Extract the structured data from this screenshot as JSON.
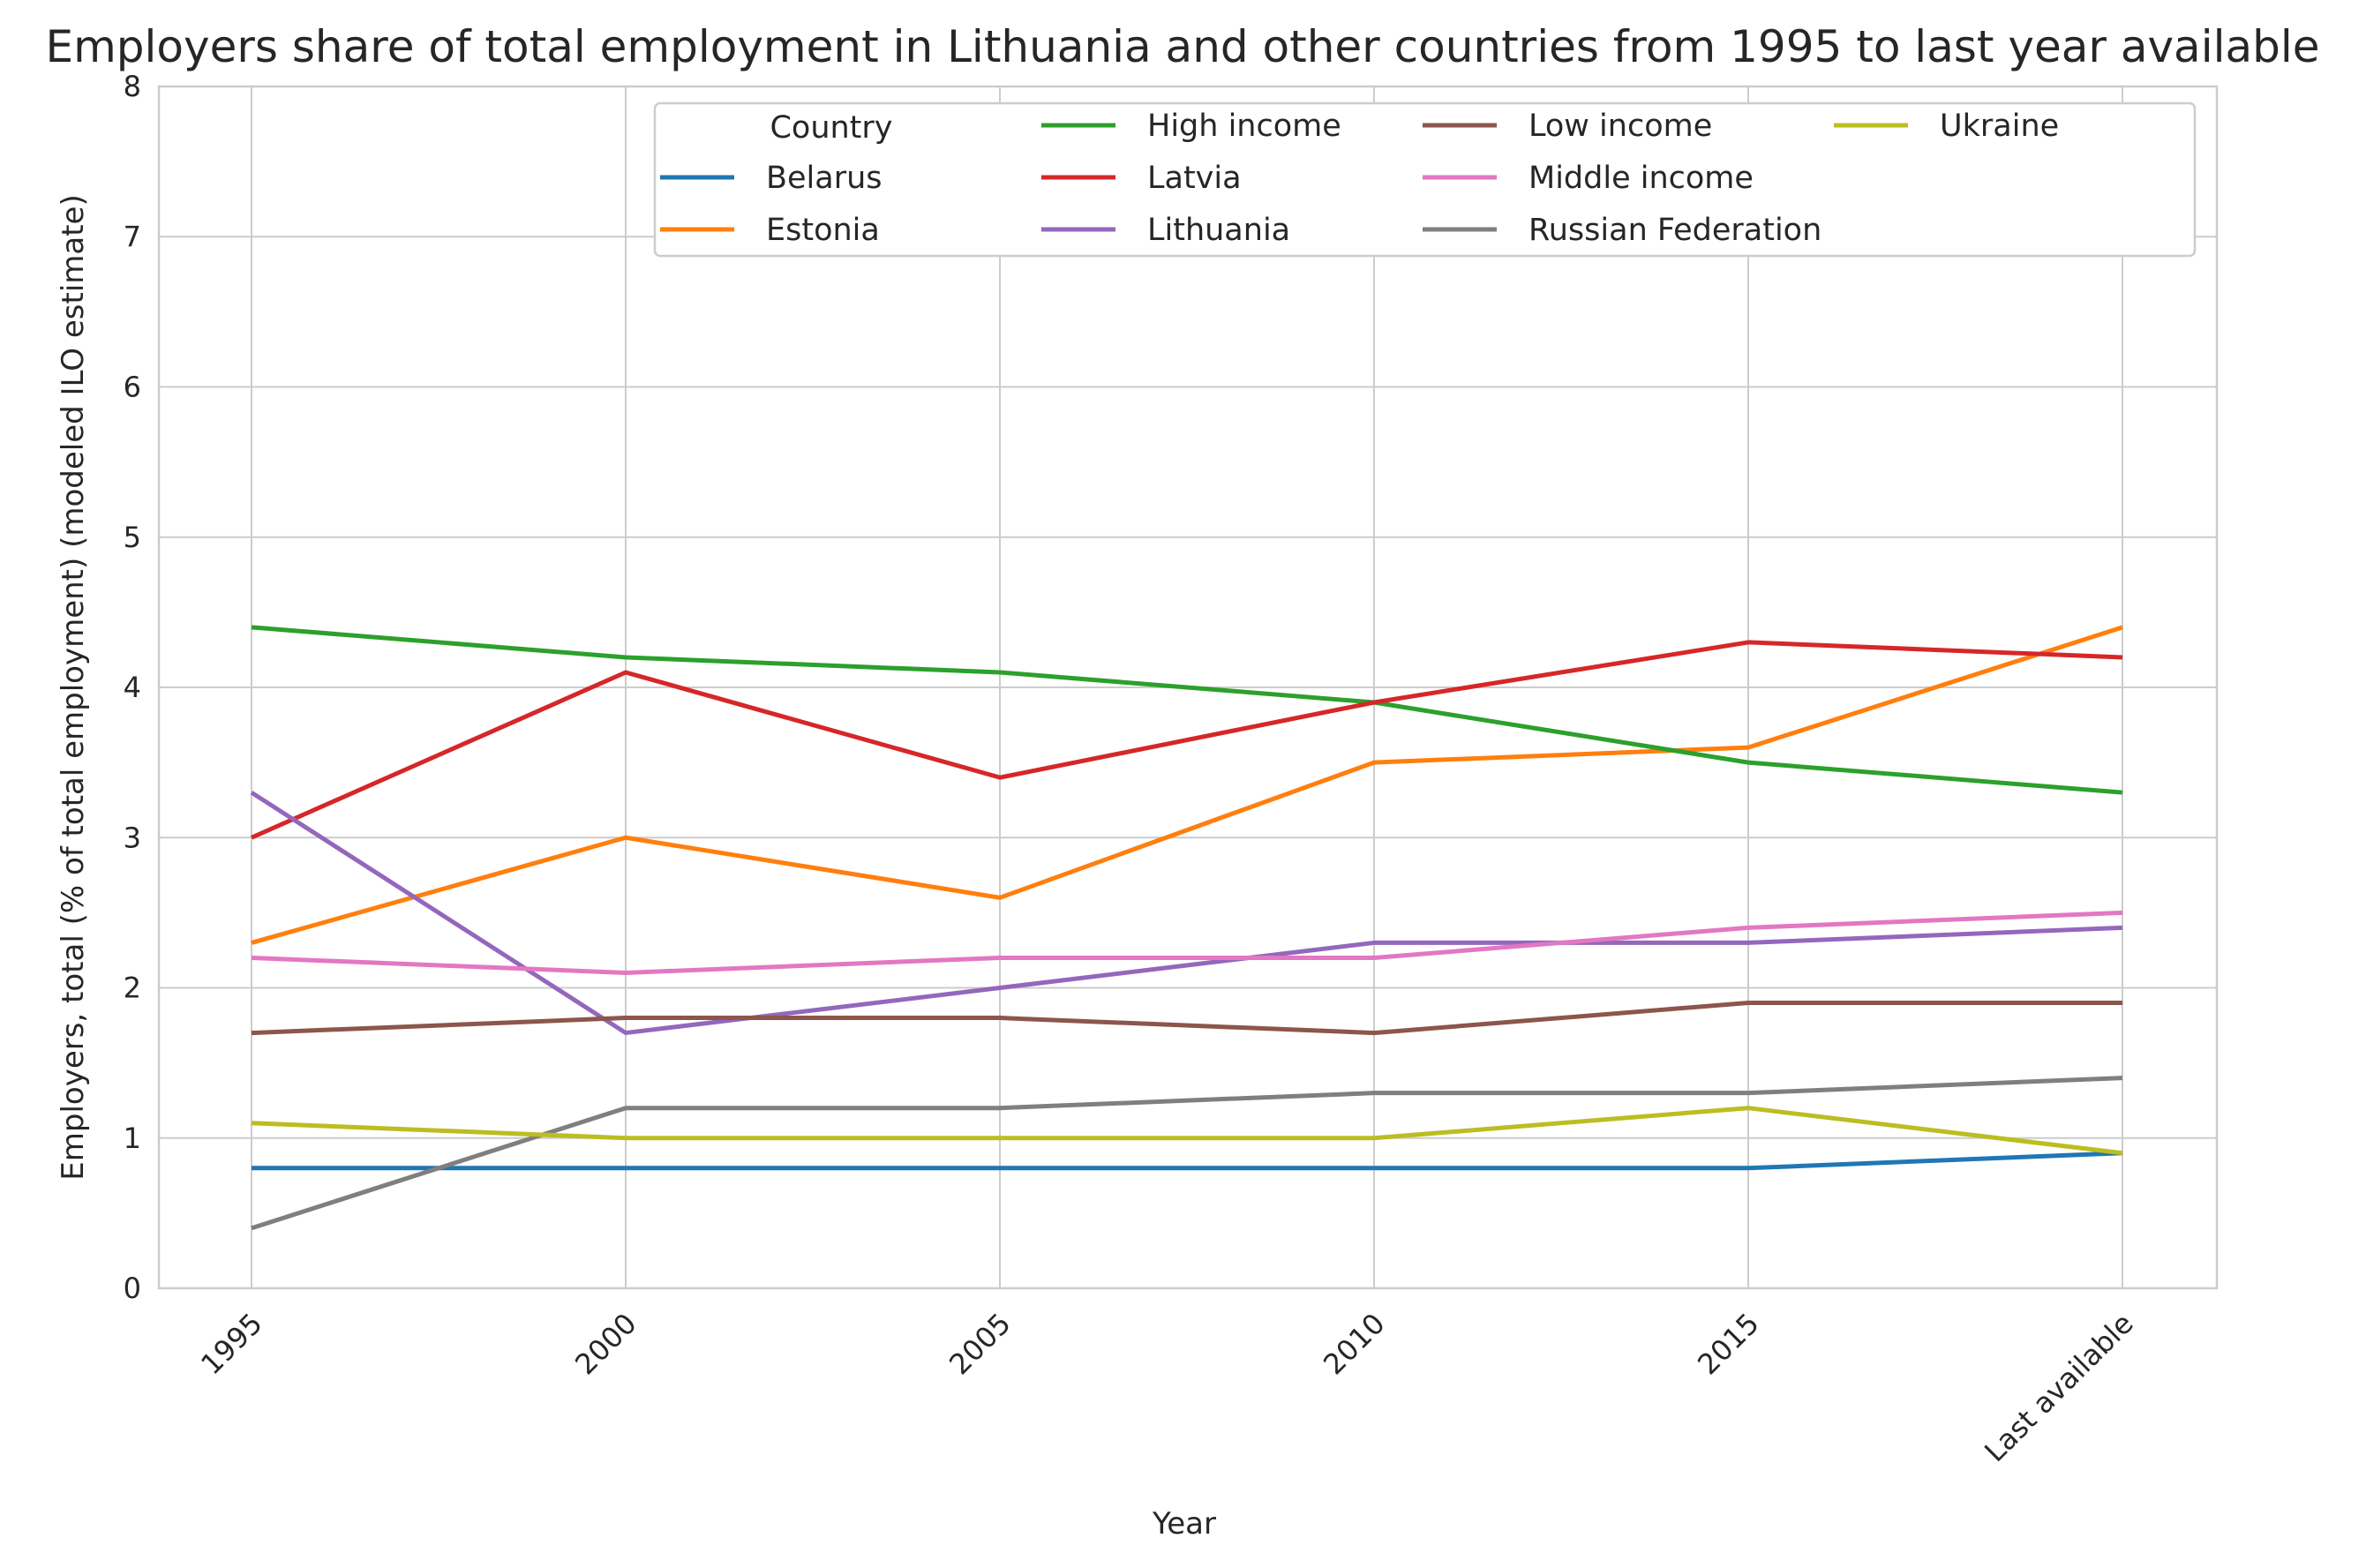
{
  "chart_data": {
    "type": "line",
    "title": "Employers share of total employment in Lithuania and other countries from 1995 to last year available",
    "xlabel": "Year",
    "ylabel": "Employers, total (% of total employment) (modeled ILO estimate)",
    "categories": [
      "1995",
      "2000",
      "2005",
      "2010",
      "2015",
      "Last available"
    ],
    "ylim": [
      0,
      8
    ],
    "yticks": [
      "0",
      "1",
      "2",
      "3",
      "4",
      "5",
      "6",
      "7",
      "8"
    ],
    "grid": true,
    "legend": {
      "title": "Country",
      "placement": "top-right",
      "columns": 4
    },
    "series": [
      {
        "name": "Belarus",
        "color": "#1f77b4",
        "values": [
          0.8,
          0.8,
          0.8,
          0.8,
          0.8,
          0.9
        ]
      },
      {
        "name": "Estonia",
        "color": "#ff7f0e",
        "values": [
          2.3,
          3.0,
          2.6,
          3.5,
          3.6,
          4.4
        ]
      },
      {
        "name": "High income",
        "color": "#2ca02c",
        "values": [
          4.4,
          4.2,
          4.1,
          3.9,
          3.5,
          3.3
        ]
      },
      {
        "name": "Latvia",
        "color": "#d62728",
        "values": [
          3.0,
          4.1,
          3.4,
          3.9,
          4.3,
          4.2
        ]
      },
      {
        "name": "Lithuania",
        "color": "#9467bd",
        "values": [
          3.3,
          1.7,
          2.0,
          2.3,
          2.3,
          2.4
        ]
      },
      {
        "name": "Low income",
        "color": "#8c564b",
        "values": [
          1.7,
          1.8,
          1.8,
          1.7,
          1.9,
          1.9
        ]
      },
      {
        "name": "Middle income",
        "color": "#e377c2",
        "values": [
          2.2,
          2.1,
          2.2,
          2.2,
          2.4,
          2.5
        ]
      },
      {
        "name": "Russian Federation",
        "color": "#7f7f7f",
        "values": [
          0.4,
          1.2,
          1.2,
          1.3,
          1.3,
          1.4
        ]
      },
      {
        "name": "Ukraine",
        "color": "#bcbd22",
        "values": [
          1.1,
          1.0,
          1.0,
          1.0,
          1.2,
          0.9
        ]
      }
    ]
  }
}
